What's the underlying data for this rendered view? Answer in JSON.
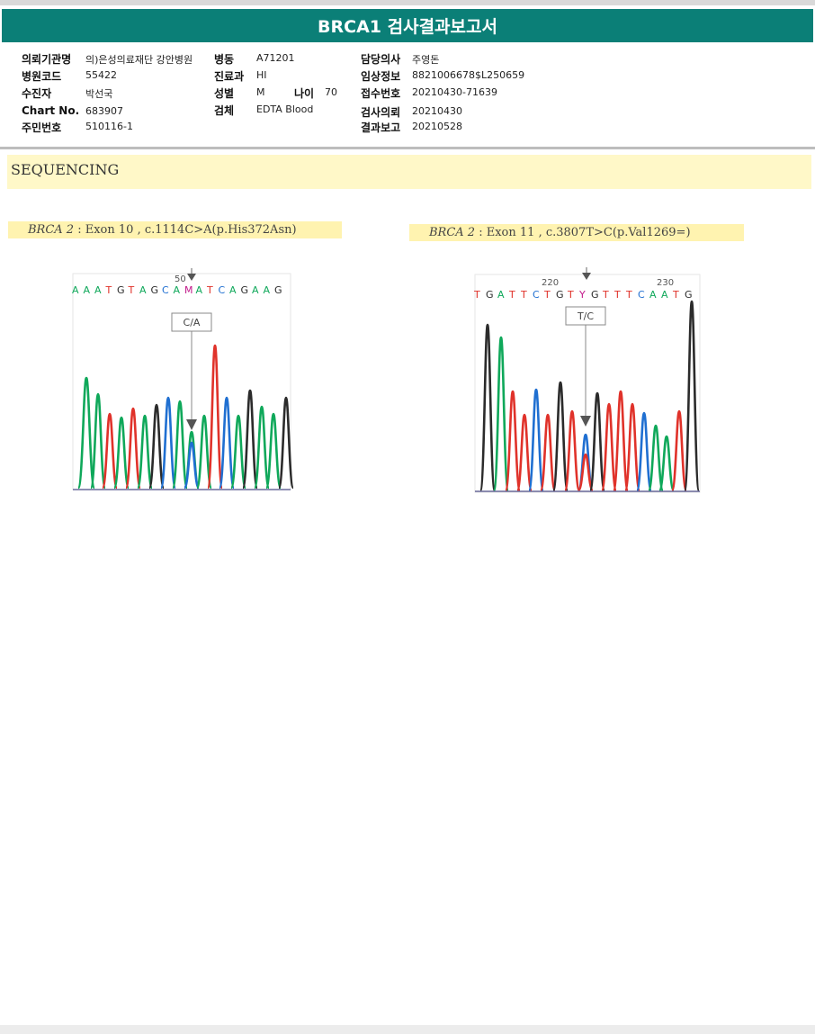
{
  "report": {
    "title": "BRCA1 검사결과보고서"
  },
  "patient_info": {
    "institution_label": "의뢰기관명",
    "institution_value": "의)은성의료재단 강안병원",
    "hospital_code_label": "병원코드",
    "hospital_code_value": "55422",
    "examinee_label": "수진자",
    "examinee_value": "박선국",
    "chart_no_label": "Chart No.",
    "chart_no_value": "683907",
    "resident_no_label": "주민번호",
    "resident_no_value": "510116-1",
    "ward_label": "병동",
    "ward_value": "A71201",
    "department_label": "진료과",
    "department_value": "HI",
    "sex_label": "성별",
    "sex_value": "M",
    "age_label": "나이",
    "age_value": "70",
    "specimen_label": "검체",
    "specimen_value": "EDTA Blood",
    "physician_label": "담당의사",
    "physician_value": "주영돈",
    "clinical_info_label": "임상정보",
    "clinical_info_value": "8821006678$L250659",
    "receipt_no_label": "접수번호",
    "receipt_no_value": "20210430-71639",
    "request_date_label": "검사의뢰",
    "request_date_value": "20210430",
    "report_date_label": "결과보고",
    "report_date_value": "20210528"
  },
  "section": {
    "title": "SEQUENCING"
  },
  "panels": [
    {
      "gene": "BRCA 2",
      "variant": " : Exon 10 , c.1114C>A(p.His372Asn)",
      "position_label": "50",
      "bases": "AAATGTAGCAMATCAGAAG",
      "call_label": "C/A"
    },
    {
      "gene": "BRCA 2",
      "variant": " : Exon 11 , c.3807T>C(p.Val1269=)",
      "position_label_1": "220",
      "position_label_2": "230",
      "bases": "TGATTCTGTYGTTTCAATG",
      "call_label": "T/C"
    }
  ],
  "colors": {
    "title_bar": "#0b7f77",
    "A": "#0fa85a",
    "C": "#1f6fd1",
    "G": "#2b2b2b",
    "T": "#e0322a",
    "ambiguous": "#c2188a",
    "section_band": "#fff8c8"
  }
}
